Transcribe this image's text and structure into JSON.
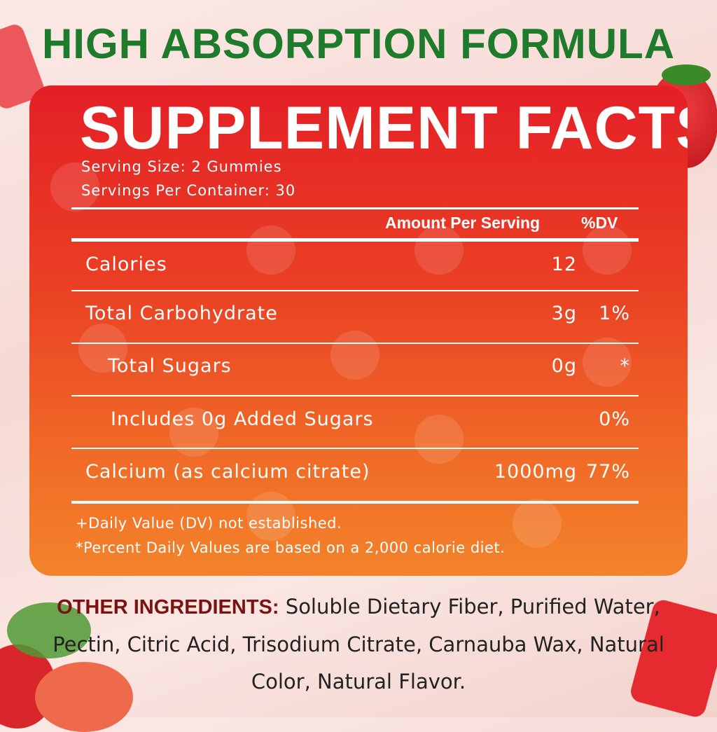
{
  "title": "HIGH ABSORPTION FORMULA",
  "panel": {
    "heading": "SUPPLEMENT FACTS",
    "serving_size": "Serving Size: 2 Gummies",
    "servings_per_container": "Servings Per Container: 30",
    "col_amount": "Amount Per Serving",
    "col_dv": "%DV",
    "rows": [
      {
        "label": "Calories",
        "amount": "12",
        "dv": ""
      },
      {
        "label": "Total Carbohydrate",
        "amount": "3g",
        "dv": "1%"
      },
      {
        "label": "Total Sugars",
        "amount": "0g",
        "dv": "*"
      },
      {
        "label": "Includes 0g Added Sugars",
        "amount": "",
        "dv": "0%"
      },
      {
        "label": "Calcium (as calcium citrate)",
        "amount": "1000mg",
        "dv": "77%"
      }
    ],
    "footnote1": "+Daily Value (DV) not established.",
    "footnote2": "*Percent Daily Values are based on a 2,000 calorie diet."
  },
  "ingredients": {
    "label": "OTHER INGREDIENTS:",
    "text": " Soluble Dietary Fiber, Purified Water, Pectin, Citric Acid, Trisodium Citrate, Carnauba Wax, Natural Color, Natural Flavor."
  },
  "colors": {
    "title": "#1e7b2c",
    "panel_top": "#e41f26",
    "panel_bottom": "#f3832a",
    "ingredients_label": "#7a1212"
  }
}
